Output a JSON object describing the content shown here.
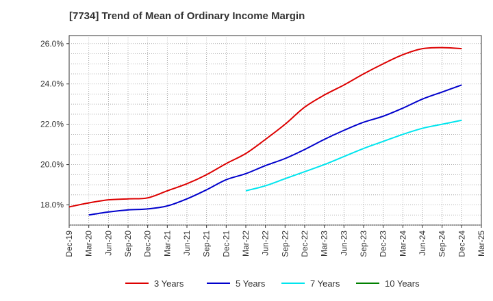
{
  "chart_data": {
    "type": "line",
    "title": "[7734]  Trend of Mean of Ordinary Income Margin",
    "xlabel": "",
    "ylabel": "",
    "ylim": [
      17.0,
      26.4
    ],
    "y_ticks": [
      18.0,
      20.0,
      22.0,
      24.0,
      26.0
    ],
    "y_tick_labels": [
      "18.0%",
      "20.0%",
      "22.0%",
      "24.0%",
      "26.0%"
    ],
    "x_tick_labels": [
      "Dec-19",
      "Mar-20",
      "Jun-20",
      "Sep-20",
      "Dec-20",
      "Mar-21",
      "Jun-21",
      "Sep-21",
      "Dec-21",
      "Mar-22",
      "Jun-22",
      "Sep-22",
      "Dec-22",
      "Mar-23",
      "Jun-23",
      "Sep-23",
      "Dec-23",
      "Mar-24",
      "Jun-24",
      "Sep-24",
      "Dec-24",
      "Mar-25"
    ],
    "grid": true,
    "legend_position": "bottom",
    "series": [
      {
        "name": "3 Years",
        "color": "#dd0000",
        "x": [
          "Dec-19",
          "Mar-20",
          "Jun-20",
          "Sep-20",
          "Dec-20",
          "Mar-21",
          "Jun-21",
          "Sep-21",
          "Dec-21",
          "Mar-22",
          "Jun-22",
          "Sep-22",
          "Dec-22",
          "Mar-23",
          "Jun-23",
          "Sep-23",
          "Dec-23",
          "Mar-24",
          "Jun-24",
          "Sep-24",
          "Dec-24"
        ],
        "values": [
          17.9,
          18.1,
          18.25,
          18.3,
          18.35,
          18.7,
          19.05,
          19.5,
          20.05,
          20.55,
          21.25,
          22.0,
          22.85,
          23.45,
          23.95,
          24.5,
          25.0,
          25.45,
          25.75,
          25.8,
          25.75
        ]
      },
      {
        "name": "5 Years",
        "color": "#0000cc",
        "x": [
          "Mar-20",
          "Jun-20",
          "Sep-20",
          "Dec-20",
          "Mar-21",
          "Jun-21",
          "Sep-21",
          "Dec-21",
          "Mar-22",
          "Jun-22",
          "Sep-22",
          "Dec-22",
          "Mar-23",
          "Jun-23",
          "Sep-23",
          "Dec-23",
          "Mar-24",
          "Jun-24",
          "Sep-24",
          "Dec-24"
        ],
        "values": [
          17.5,
          17.65,
          17.75,
          17.8,
          17.95,
          18.3,
          18.75,
          19.25,
          19.55,
          19.95,
          20.3,
          20.75,
          21.25,
          21.7,
          22.1,
          22.4,
          22.8,
          23.25,
          23.6,
          23.95
        ]
      },
      {
        "name": "7 Years",
        "color": "#00e5ee",
        "x": [
          "Mar-22",
          "Jun-22",
          "Sep-22",
          "Dec-22",
          "Mar-23",
          "Jun-23",
          "Sep-23",
          "Dec-23",
          "Mar-24",
          "Jun-24",
          "Sep-24",
          "Dec-24"
        ],
        "values": [
          18.7,
          18.95,
          19.3,
          19.65,
          20.0,
          20.4,
          20.8,
          21.15,
          21.5,
          21.8,
          22.0,
          22.2
        ]
      },
      {
        "name": "10 Years",
        "color": "#008000",
        "x": [],
        "values": []
      }
    ]
  }
}
